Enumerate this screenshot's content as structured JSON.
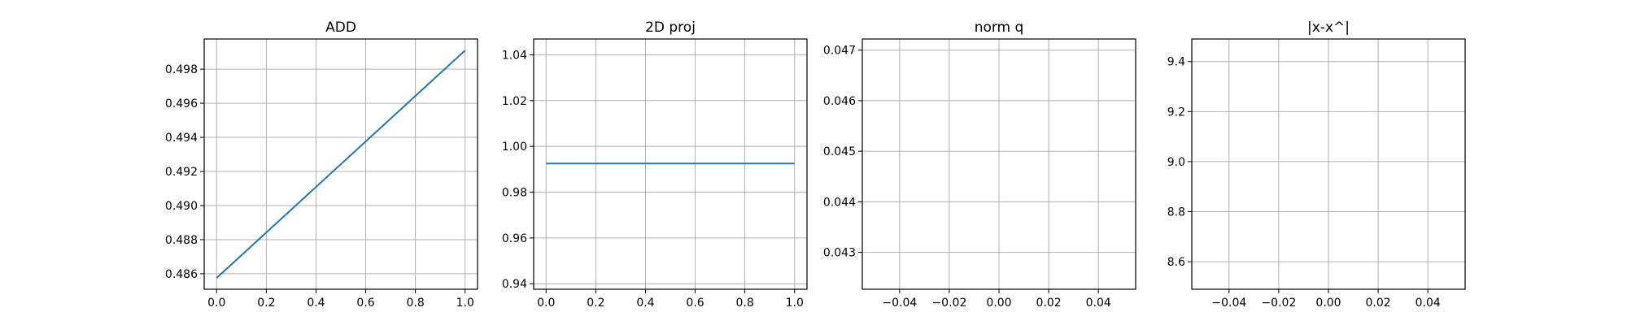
{
  "chart_data": [
    {
      "type": "line",
      "title": "ADD",
      "xlabel": "",
      "ylabel": "",
      "xlim": [
        -0.05,
        1.05
      ],
      "ylim": [
        0.48509,
        0.49977
      ],
      "xticks": [
        0.0,
        0.2,
        0.4,
        0.6,
        0.8,
        1.0
      ],
      "xtick_labels": [
        "0.0",
        "0.2",
        "0.4",
        "0.6",
        "0.8",
        "1.0"
      ],
      "yticks": [
        0.486,
        0.488,
        0.49,
        0.492,
        0.494,
        0.496,
        0.498
      ],
      "ytick_labels": [
        "0.486",
        "0.488",
        "0.490",
        "0.492",
        "0.494",
        "0.496",
        "0.498"
      ],
      "grid": true,
      "series": [
        {
          "x": [
            0.0,
            1.0
          ],
          "y": [
            0.48575,
            0.4991
          ],
          "color": "#1f77b4"
        }
      ]
    },
    {
      "type": "line",
      "title": "2D proj",
      "xlabel": "",
      "ylabel": "",
      "xlim": [
        -0.05,
        1.05
      ],
      "ylim": [
        0.9376,
        1.0469
      ],
      "xticks": [
        0.0,
        0.2,
        0.4,
        0.6,
        0.8,
        1.0
      ],
      "xtick_labels": [
        "0.0",
        "0.2",
        "0.4",
        "0.6",
        "0.8",
        "1.0"
      ],
      "yticks": [
        0.94,
        0.96,
        0.98,
        1.0,
        1.02,
        1.04
      ],
      "ytick_labels": [
        "0.94",
        "0.96",
        "0.98",
        "1.00",
        "1.02",
        "1.04"
      ],
      "grid": true,
      "series": [
        {
          "x": [
            0.0,
            1.0
          ],
          "y": [
            0.9925,
            0.9925
          ],
          "color": "#1f77b4"
        }
      ]
    },
    {
      "type": "line",
      "title": "norm q",
      "xlabel": "",
      "ylabel": "",
      "xlim": [
        -0.055,
        0.055
      ],
      "ylim": [
        0.04227,
        0.04722
      ],
      "xticks": [
        -0.04,
        -0.02,
        0.0,
        0.02,
        0.04
      ],
      "xtick_labels": [
        "−0.04",
        "−0.02",
        "0.00",
        "0.02",
        "0.04"
      ],
      "yticks": [
        0.043,
        0.044,
        0.045,
        0.046,
        0.047
      ],
      "ytick_labels": [
        "0.043",
        "0.044",
        "0.045",
        "0.046",
        "0.047"
      ],
      "grid": true,
      "series": []
    },
    {
      "type": "line",
      "title": "|x-x^|",
      "xlabel": "",
      "ylabel": "",
      "xlim": [
        -0.055,
        0.055
      ],
      "ylim": [
        8.49,
        9.49
      ],
      "xticks": [
        -0.04,
        -0.02,
        0.0,
        0.02,
        0.04
      ],
      "xtick_labels": [
        "−0.04",
        "−0.02",
        "0.00",
        "0.02",
        "0.04"
      ],
      "yticks": [
        8.6,
        8.8,
        9.0,
        9.2,
        9.4
      ],
      "ytick_labels": [
        "8.6",
        "8.8",
        "9.0",
        "9.2",
        "9.4"
      ],
      "grid": true,
      "series": []
    }
  ]
}
